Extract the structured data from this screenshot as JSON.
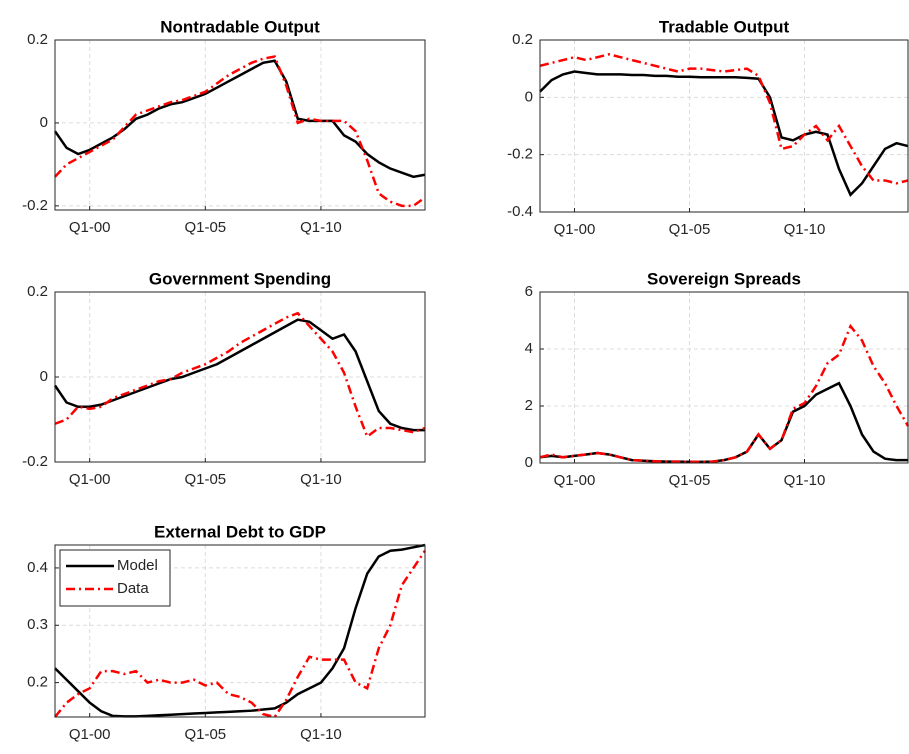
{
  "chart_data": [
    {
      "type": "line",
      "title": "Nontradable Output",
      "x": [
        1998.5,
        1999,
        1999.5,
        2000,
        2000.5,
        2001,
        2001.5,
        2002,
        2002.5,
        2003,
        2003.5,
        2004,
        2004.5,
        2005,
        2005.5,
        2006,
        2006.5,
        2007,
        2007.5,
        2008,
        2008.5,
        2009,
        2009.5,
        2010,
        2010.5,
        2011,
        2011.5,
        2012,
        2012.5,
        2013,
        2013.5,
        2014,
        2014.5
      ],
      "xlim": [
        1998.5,
        2014.5
      ],
      "xticks": [
        {
          "value": 2000,
          "label": "Q1-00"
        },
        {
          "value": 2005,
          "label": "Q1-05"
        },
        {
          "value": 2010,
          "label": "Q1-10"
        }
      ],
      "ylim": [
        -0.21,
        0.2
      ],
      "yticks": [
        -0.2,
        0,
        0.2
      ],
      "grid": true,
      "series": [
        {
          "name": "Model",
          "color": "#000000",
          "values": [
            -0.02,
            -0.06,
            -0.075,
            -0.065,
            -0.05,
            -0.035,
            -0.015,
            0.01,
            0.02,
            0.035,
            0.045,
            0.05,
            0.06,
            0.07,
            0.085,
            0.1,
            0.115,
            0.13,
            0.145,
            0.15,
            0.1,
            0.01,
            0.005,
            0.005,
            0.005,
            -0.03,
            -0.045,
            -0.075,
            -0.095,
            -0.11,
            -0.12,
            -0.13,
            -0.125
          ]
        },
        {
          "name": "Data",
          "color": "#ff0000",
          "values": [
            -0.13,
            -0.1,
            -0.085,
            -0.07,
            -0.055,
            -0.04,
            -0.01,
            0.02,
            0.03,
            0.04,
            0.05,
            0.055,
            0.065,
            0.075,
            0.095,
            0.115,
            0.13,
            0.145,
            0.155,
            0.16,
            0.09,
            0.0,
            0.01,
            0.005,
            0.005,
            0.005,
            -0.02,
            -0.09,
            -0.17,
            -0.19,
            -0.2,
            -0.2,
            -0.18
          ]
        }
      ]
    },
    {
      "type": "line",
      "title": "Tradable Output",
      "x": [
        1998.5,
        1999,
        1999.5,
        2000,
        2000.5,
        2001,
        2001.5,
        2002,
        2002.5,
        2003,
        2003.5,
        2004,
        2004.5,
        2005,
        2005.5,
        2006,
        2006.5,
        2007,
        2007.5,
        2008,
        2008.5,
        2009,
        2009.5,
        2010,
        2010.5,
        2011,
        2011.5,
        2012,
        2012.5,
        2013,
        2013.5,
        2014,
        2014.5
      ],
      "xlim": [
        1998.5,
        2014.5
      ],
      "xticks": [
        {
          "value": 2000,
          "label": "Q1-00"
        },
        {
          "value": 2005,
          "label": "Q1-05"
        },
        {
          "value": 2010,
          "label": "Q1-10"
        }
      ],
      "ylim": [
        -0.4,
        0.2
      ],
      "yticks": [
        -0.4,
        -0.2,
        0,
        0.2
      ],
      "grid": true,
      "series": [
        {
          "name": "Model",
          "color": "#000000",
          "values": [
            0.02,
            0.06,
            0.08,
            0.09,
            0.085,
            0.08,
            0.08,
            0.08,
            0.078,
            0.078,
            0.075,
            0.075,
            0.072,
            0.072,
            0.07,
            0.07,
            0.07,
            0.07,
            0.068,
            0.065,
            0.0,
            -0.14,
            -0.15,
            -0.13,
            -0.12,
            -0.13,
            -0.25,
            -0.34,
            -0.3,
            -0.24,
            -0.18,
            -0.16,
            -0.17
          ]
        },
        {
          "name": "Data",
          "color": "#ff0000",
          "values": [
            0.11,
            0.12,
            0.13,
            0.14,
            0.13,
            0.14,
            0.15,
            0.14,
            0.13,
            0.12,
            0.11,
            0.1,
            0.09,
            0.1,
            0.1,
            0.095,
            0.09,
            0.095,
            0.1,
            0.075,
            -0.02,
            -0.18,
            -0.17,
            -0.13,
            -0.1,
            -0.15,
            -0.1,
            -0.17,
            -0.24,
            -0.29,
            -0.29,
            -0.3,
            -0.29
          ]
        }
      ]
    },
    {
      "type": "line",
      "title": "Government Spending",
      "x": [
        1998.5,
        1999,
        1999.5,
        2000,
        2000.5,
        2001,
        2001.5,
        2002,
        2002.5,
        2003,
        2003.5,
        2004,
        2004.5,
        2005,
        2005.5,
        2006,
        2006.5,
        2007,
        2007.5,
        2008,
        2008.5,
        2009,
        2009.5,
        2010,
        2010.5,
        2011,
        2011.5,
        2012,
        2012.5,
        2013,
        2013.5,
        2014,
        2014.5
      ],
      "xlim": [
        1998.5,
        2014.5
      ],
      "xticks": [
        {
          "value": 2000,
          "label": "Q1-00"
        },
        {
          "value": 2005,
          "label": "Q1-05"
        },
        {
          "value": 2010,
          "label": "Q1-10"
        }
      ],
      "ylim": [
        -0.2,
        0.2
      ],
      "yticks": [
        -0.2,
        0,
        0.2
      ],
      "grid": true,
      "series": [
        {
          "name": "Model",
          "color": "#000000",
          "values": [
            -0.02,
            -0.06,
            -0.07,
            -0.07,
            -0.065,
            -0.055,
            -0.045,
            -0.035,
            -0.025,
            -0.015,
            -0.005,
            0.0,
            0.01,
            0.02,
            0.03,
            0.045,
            0.06,
            0.075,
            0.09,
            0.105,
            0.12,
            0.135,
            0.13,
            0.11,
            0.09,
            0.1,
            0.06,
            -0.01,
            -0.08,
            -0.11,
            -0.12,
            -0.125,
            -0.125
          ]
        },
        {
          "name": "Data",
          "color": "#ff0000",
          "values": [
            -0.11,
            -0.1,
            -0.07,
            -0.075,
            -0.07,
            -0.05,
            -0.04,
            -0.03,
            -0.02,
            -0.01,
            -0.005,
            0.01,
            0.02,
            0.03,
            0.045,
            0.06,
            0.08,
            0.095,
            0.11,
            0.125,
            0.14,
            0.15,
            0.12,
            0.09,
            0.06,
            0.01,
            -0.07,
            -0.14,
            -0.12,
            -0.12,
            -0.125,
            -0.13,
            -0.12
          ]
        }
      ]
    },
    {
      "type": "line",
      "title": "Sovereign Spreads",
      "x": [
        1998.5,
        1999,
        1999.5,
        2000,
        2000.5,
        2001,
        2001.5,
        2002,
        2002.5,
        2003,
        2003.5,
        2004,
        2004.5,
        2005,
        2005.5,
        2006,
        2006.5,
        2007,
        2007.5,
        2008,
        2008.5,
        2009,
        2009.5,
        2010,
        2010.5,
        2011,
        2011.5,
        2012,
        2012.5,
        2013,
        2013.5,
        2014,
        2014.5
      ],
      "xlim": [
        1998.5,
        2014.5
      ],
      "xticks": [
        {
          "value": 2000,
          "label": "Q1-00"
        },
        {
          "value": 2005,
          "label": "Q1-05"
        },
        {
          "value": 2010,
          "label": "Q1-10"
        }
      ],
      "ylim": [
        0,
        6
      ],
      "yticks": [
        0,
        2,
        4,
        6
      ],
      "grid": true,
      "series": [
        {
          "name": "Model",
          "color": "#000000",
          "values": [
            0.2,
            0.25,
            0.2,
            0.25,
            0.3,
            0.35,
            0.3,
            0.2,
            0.1,
            0.08,
            0.06,
            0.05,
            0.05,
            0.04,
            0.04,
            0.05,
            0.1,
            0.2,
            0.4,
            1.0,
            0.5,
            0.8,
            1.8,
            2.0,
            2.4,
            2.6,
            2.8,
            2.0,
            1.0,
            0.4,
            0.15,
            0.1,
            0.1
          ]
        },
        {
          "name": "Data",
          "color": "#ff0000",
          "values": [
            0.2,
            0.3,
            0.2,
            0.25,
            0.3,
            0.35,
            0.3,
            0.2,
            0.1,
            0.08,
            0.06,
            0.05,
            0.05,
            0.04,
            0.04,
            0.05,
            0.1,
            0.2,
            0.4,
            1.0,
            0.5,
            0.8,
            1.9,
            2.1,
            2.7,
            3.5,
            3.8,
            4.8,
            4.3,
            3.4,
            2.8,
            2.0,
            1.3
          ]
        }
      ]
    },
    {
      "type": "line",
      "title": "External Debt to GDP",
      "x": [
        1998.5,
        1999,
        1999.5,
        2000,
        2000.5,
        2001,
        2001.5,
        2002,
        2002.5,
        2003,
        2003.5,
        2004,
        2004.5,
        2005,
        2005.5,
        2006,
        2006.5,
        2007,
        2007.5,
        2008,
        2008.5,
        2009,
        2009.5,
        2010,
        2010.5,
        2011,
        2011.5,
        2012,
        2012.5,
        2013,
        2013.5,
        2014,
        2014.5
      ],
      "xlim": [
        1998.5,
        2014.5
      ],
      "xticks": [
        {
          "value": 2000,
          "label": "Q1-00"
        },
        {
          "value": 2005,
          "label": "Q1-05"
        },
        {
          "value": 2010,
          "label": "Q1-10"
        }
      ],
      "ylim": [
        0.14,
        0.44
      ],
      "yticks": [
        0.2,
        0.3,
        0.4
      ],
      "grid": true,
      "legend": "upper left",
      "series": [
        {
          "name": "Model",
          "color": "#000000",
          "values": [
            0.225,
            0.205,
            0.185,
            0.165,
            0.15,
            0.142,
            0.141,
            0.141,
            0.142,
            0.143,
            0.144,
            0.145,
            0.146,
            0.147,
            0.148,
            0.149,
            0.15,
            0.151,
            0.153,
            0.155,
            0.165,
            0.18,
            0.19,
            0.2,
            0.225,
            0.26,
            0.33,
            0.39,
            0.42,
            0.43,
            0.432,
            0.436,
            0.44
          ]
        },
        {
          "name": "Data",
          "color": "#ff0000",
          "values": [
            0.14,
            0.165,
            0.18,
            0.19,
            0.22,
            0.22,
            0.215,
            0.22,
            0.2,
            0.205,
            0.2,
            0.2,
            0.205,
            0.195,
            0.2,
            0.18,
            0.175,
            0.165,
            0.145,
            0.14,
            0.17,
            0.21,
            0.245,
            0.24,
            0.24,
            0.24,
            0.2,
            0.19,
            0.26,
            0.3,
            0.37,
            0.4,
            0.43
          ]
        }
      ]
    }
  ]
}
